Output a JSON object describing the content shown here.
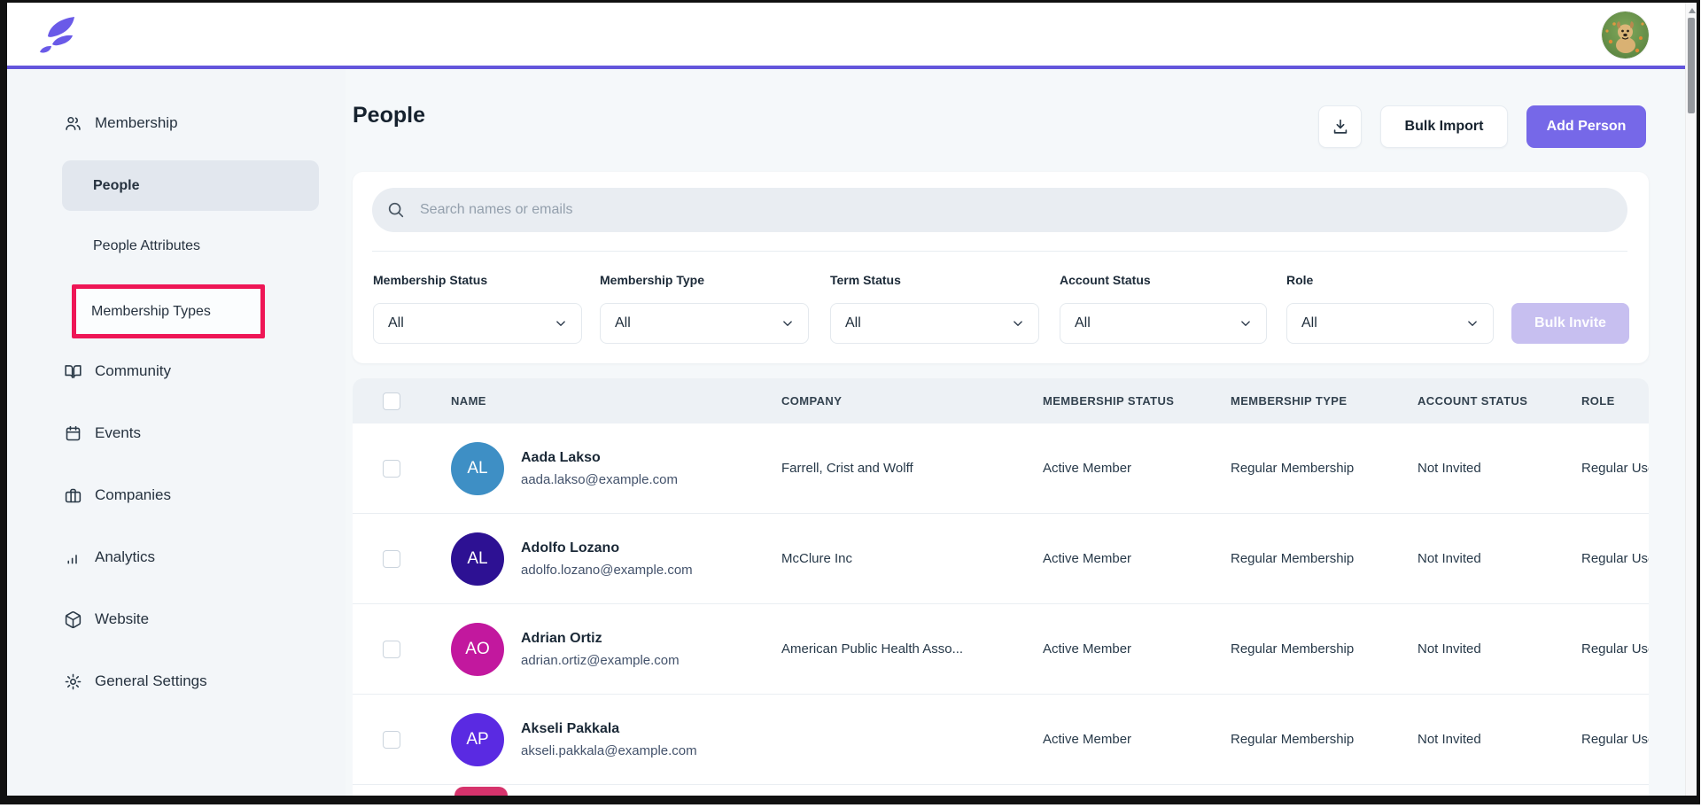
{
  "topbar": {
    "logo_icon": "leaf-logo",
    "avatar_icon": "dog-photo-avatar"
  },
  "sidebar": {
    "items": [
      {
        "label": "Membership",
        "type": "section",
        "icon": "users"
      },
      {
        "label": "People",
        "type": "sub",
        "active": true
      },
      {
        "label": "People Attributes",
        "type": "sub"
      },
      {
        "label": "Membership Types",
        "type": "sub",
        "highlighted": true
      },
      {
        "label": "Community",
        "type": "section",
        "icon": "book"
      },
      {
        "label": "Events",
        "type": "section",
        "icon": "calendar"
      },
      {
        "label": "Companies",
        "type": "section",
        "icon": "briefcase"
      },
      {
        "label": "Analytics",
        "type": "section",
        "icon": "chart"
      },
      {
        "label": "Website",
        "type": "section",
        "icon": "cube"
      },
      {
        "label": "General Settings",
        "type": "section",
        "icon": "gear"
      }
    ]
  },
  "page": {
    "title": "People"
  },
  "actions": {
    "export_icon": "download",
    "bulk_import": "Bulk Import",
    "add_person": "Add Person"
  },
  "search": {
    "placeholder": "Search names or emails",
    "icon": "magnifier"
  },
  "filters": {
    "items": [
      {
        "label": "Membership Status",
        "value": "All"
      },
      {
        "label": "Membership Type",
        "value": "All"
      },
      {
        "label": "Term Status",
        "value": "All"
      },
      {
        "label": "Account Status",
        "value": "All"
      },
      {
        "label": "Role",
        "value": "All"
      }
    ],
    "bulk_invite": "Bulk Invite"
  },
  "table": {
    "columns": [
      "NAME",
      "COMPANY",
      "MEMBERSHIP STATUS",
      "MEMBERSHIP TYPE",
      "ACCOUNT STATUS",
      "ROLE"
    ],
    "rows": [
      {
        "initials": "AL",
        "avatar_color": "#3E8FC5",
        "name": "Aada Lakso",
        "email": "aada.lakso@example.com",
        "company": "Farrell, Crist and Wolff",
        "membership_status": "Active Member",
        "membership_type": "Regular Membership",
        "account_status": "Not Invited",
        "role": "Regular User"
      },
      {
        "initials": "AL",
        "avatar_color": "#2D1193",
        "name": "Adolfo Lozano",
        "email": "adolfo.lozano@example.com",
        "company": "McClure Inc",
        "membership_status": "Active Member",
        "membership_type": "Regular Membership",
        "account_status": "Not Invited",
        "role": "Regular User"
      },
      {
        "initials": "AO",
        "avatar_color": "#C2189E",
        "name": "Adrian Ortiz",
        "email": "adrian.ortiz@example.com",
        "company": "American Public Health Asso...",
        "membership_status": "Active Member",
        "membership_type": "Regular Membership",
        "account_status": "Not Invited",
        "role": "Regular User"
      },
      {
        "initials": "AP",
        "avatar_color": "#5A2AE2",
        "name": "Akseli Pakkala",
        "email": "akseli.pakkala@example.com",
        "company": "",
        "membership_status": "Active Member",
        "membership_type": "Regular Membership",
        "account_status": "Not Invited",
        "role": "Regular User"
      }
    ],
    "partial_row_avatar_color": "#D6336C"
  },
  "colors": {
    "accent_purple": "#7668E8",
    "topbar_line": "#6355DC",
    "highlight_red": "#EE1656",
    "bulk_invite_bg": "#C7BFF0",
    "sidebar_bg": "#F3F6F9",
    "table_header_bg": "#EDF1F5"
  }
}
